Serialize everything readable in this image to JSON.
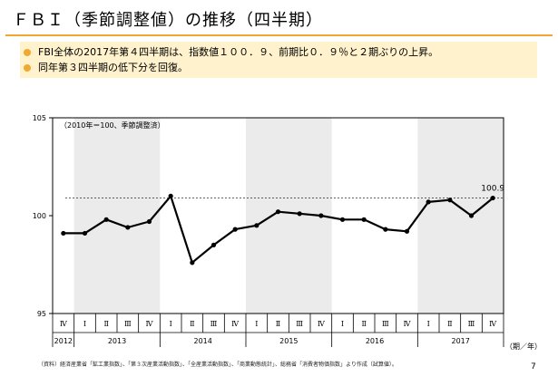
{
  "slide": {
    "title": "ＦＢＩ（季節調整値）の推移（四半期）",
    "bullets": [
      "FBI全体の2017年第４四半期は、指数値１００．９、前期比０．９％と２期ぶりの上昇。",
      "同年第３四半期の低下分を回復。"
    ],
    "source": "（資料）経済産業省「鉱工業指数」、「第３次産業活動指数」、「全産業活動指数」、「商業動態統計」、総務省「消費者物価指数」より作成（試算値）。",
    "page_number": "7"
  },
  "colors": {
    "accent": "#f0a830",
    "bullet_bg": "#fff2cc",
    "shade": "#ebebeb"
  },
  "chart_data": {
    "type": "line",
    "title": "",
    "note": "（2010年＝100、季節調整済）",
    "ylim": [
      95,
      105
    ],
    "yticks": [
      95,
      100,
      105
    ],
    "xlabel": "（期／年）",
    "grid": false,
    "reference_line": 100.9,
    "last_value_label": "100.9",
    "categories": [
      "IV",
      "I",
      "II",
      "III",
      "IV",
      "I",
      "II",
      "III",
      "IV",
      "I",
      "II",
      "III",
      "IV",
      "I",
      "II",
      "III",
      "IV",
      "I",
      "II",
      "III",
      "IV"
    ],
    "category_glyphs": [
      "Ⅳ",
      "Ⅰ",
      "Ⅱ",
      "Ⅲ",
      "Ⅳ",
      "Ⅰ",
      "Ⅱ",
      "Ⅲ",
      "Ⅳ",
      "Ⅰ",
      "Ⅱ",
      "Ⅲ",
      "Ⅳ",
      "Ⅰ",
      "Ⅱ",
      "Ⅲ",
      "Ⅳ",
      "Ⅰ",
      "Ⅱ",
      "Ⅲ",
      "Ⅳ"
    ],
    "years": [
      {
        "label": "2012",
        "start": 0,
        "end": 0
      },
      {
        "label": "2013",
        "start": 1,
        "end": 4
      },
      {
        "label": "2014",
        "start": 5,
        "end": 8
      },
      {
        "label": "2015",
        "start": 9,
        "end": 12
      },
      {
        "label": "2016",
        "start": 13,
        "end": 16
      },
      {
        "label": "2017",
        "start": 17,
        "end": 20
      }
    ],
    "shaded_years": [
      "2013",
      "2015",
      "2017"
    ],
    "series": [
      {
        "values": [
          99.1,
          99.1,
          99.8,
          99.4,
          99.7,
          101.0,
          97.6,
          98.5,
          99.3,
          99.5,
          100.2,
          100.1,
          100.0,
          99.8,
          99.8,
          99.3,
          99.2,
          100.7,
          100.8,
          100.0,
          100.9
        ]
      }
    ]
  }
}
